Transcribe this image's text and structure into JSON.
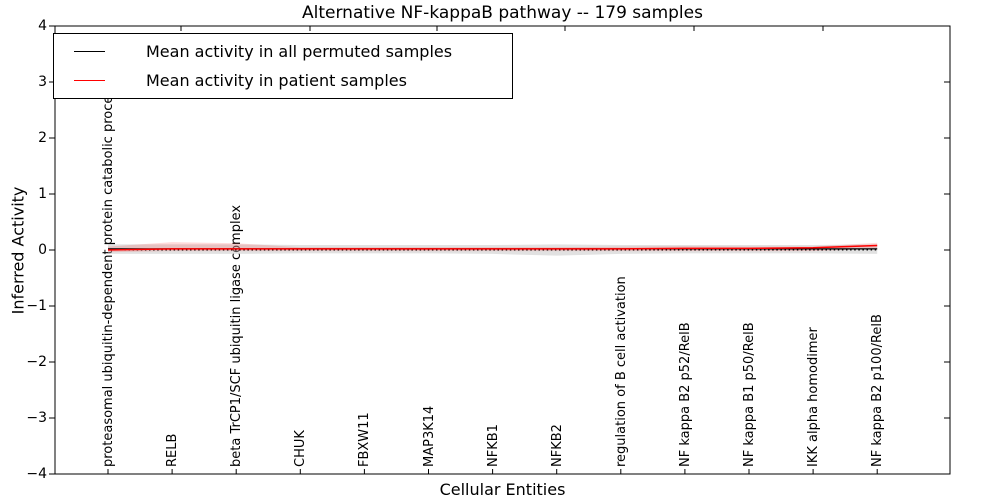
{
  "title": "Alternative NF-kappaB pathway -- 179 samples",
  "axes": {
    "ylabel": "Inferred Activity",
    "xlabel": "Cellular Entities",
    "yticks": [
      4,
      3,
      2,
      1,
      0,
      -1,
      -2,
      -3,
      -4
    ]
  },
  "legend": {
    "entries": [
      {
        "label": "Mean activity in all permuted samples",
        "color": "#000000"
      },
      {
        "label": "Mean activity in patient samples",
        "color": "#ff0000"
      }
    ],
    "position": "upper left"
  },
  "chart_data": {
    "type": "line",
    "title": "Alternative NF-kappaB pathway -- 179 samples",
    "xlabel": "Cellular Entities",
    "ylabel": "Inferred Activity",
    "ylim": [
      -4,
      4
    ],
    "grid": false,
    "zero_line_style": "dotted",
    "categories": [
      "proteasomal ubiquitin-dependent protein catabolic process",
      "RELB",
      "beta TrCP1/SCF ubiquitin ligase complex",
      "CHUK",
      "FBXW11",
      "MAP3K14",
      "NFKB1",
      "NFKB2",
      "regulation of B cell activation",
      "NF kappa B2 p52/RelB",
      "NF kappa B1 p50/RelB",
      "IKK alpha homodimer",
      "NF kappa B2 p100/RelB"
    ],
    "series": [
      {
        "name": "Mean activity in all permuted samples",
        "color": "#000000",
        "values": [
          0.02,
          0.02,
          0.02,
          0.02,
          0.02,
          0.02,
          0.02,
          0.02,
          0.02,
          0.02,
          0.02,
          0.02,
          0.02
        ]
      },
      {
        "name": "Mean activity in patient samples",
        "color": "#ff0000",
        "values": [
          0.0,
          0.02,
          0.02,
          0.02,
          0.02,
          0.02,
          0.02,
          0.02,
          0.02,
          0.03,
          0.03,
          0.04,
          0.08
        ]
      }
    ],
    "bands": [
      {
        "name": "permuted-samples-range",
        "color": "#bdbdbd",
        "opacity": 0.45,
        "upper": [
          0.1,
          0.1,
          0.1,
          0.09,
          0.09,
          0.09,
          0.09,
          0.1,
          0.09,
          0.09,
          0.09,
          0.09,
          0.1
        ],
        "lower": [
          -0.07,
          -0.07,
          -0.07,
          -0.06,
          -0.06,
          -0.06,
          -0.07,
          -0.1,
          -0.07,
          -0.06,
          -0.06,
          -0.06,
          -0.07
        ]
      },
      {
        "name": "patient-samples-range",
        "color": "#ff0000",
        "opacity": 0.14,
        "upper": [
          0.06,
          0.14,
          0.12,
          0.05,
          0.05,
          0.05,
          0.05,
          0.05,
          0.06,
          0.07,
          0.06,
          0.06,
          0.13
        ],
        "lower": [
          -0.04,
          -0.02,
          -0.02,
          -0.02,
          -0.02,
          -0.02,
          -0.02,
          -0.02,
          -0.02,
          -0.02,
          -0.02,
          -0.02,
          0.02
        ]
      }
    ]
  }
}
